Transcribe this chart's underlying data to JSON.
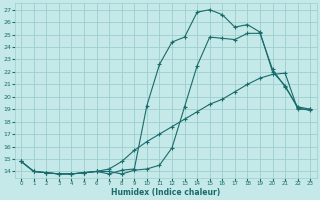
{
  "xlabel": "Humidex (Indice chaleur)",
  "bg_color": "#c5e8e8",
  "grid_color": "#9dcece",
  "line_color": "#1a6b6b",
  "xlim": [
    -0.5,
    23.5
  ],
  "ylim": [
    13.5,
    27.5
  ],
  "xticks": [
    0,
    1,
    2,
    3,
    4,
    5,
    6,
    7,
    8,
    9,
    10,
    11,
    12,
    13,
    14,
    15,
    16,
    17,
    18,
    19,
    20,
    21,
    22,
    23
  ],
  "yticks": [
    14,
    15,
    16,
    17,
    18,
    19,
    20,
    21,
    22,
    23,
    24,
    25,
    26,
    27
  ],
  "line1_x": [
    0,
    1,
    2,
    3,
    4,
    5,
    6,
    7,
    8,
    9,
    10,
    11,
    12,
    13,
    14,
    15,
    16,
    17,
    18,
    19,
    20,
    21,
    22,
    23
  ],
  "line1_y": [
    14.8,
    14.0,
    13.9,
    13.8,
    13.8,
    13.9,
    14.0,
    14.0,
    13.8,
    14.1,
    14.2,
    14.5,
    15.9,
    19.2,
    22.5,
    24.8,
    24.7,
    24.6,
    25.1,
    25.1,
    22.2,
    20.8,
    19.2,
    19.0
  ],
  "line2_x": [
    0,
    1,
    2,
    3,
    4,
    5,
    6,
    7,
    8,
    9,
    10,
    11,
    12,
    13,
    14,
    15,
    16,
    17,
    18,
    19,
    20,
    21,
    22,
    23
  ],
  "line2_y": [
    14.8,
    14.0,
    13.9,
    13.8,
    13.8,
    13.9,
    14.0,
    14.2,
    14.8,
    15.7,
    16.4,
    17.0,
    17.6,
    18.2,
    18.8,
    19.4,
    19.8,
    20.4,
    21.0,
    21.5,
    21.8,
    21.9,
    19.0,
    19.0
  ],
  "line3_x": [
    0,
    1,
    2,
    3,
    4,
    5,
    6,
    7,
    8,
    9,
    10,
    11,
    12,
    13,
    14,
    15,
    16,
    17,
    18,
    19,
    20,
    21,
    22,
    23
  ],
  "line3_y": [
    14.8,
    14.0,
    13.9,
    13.8,
    13.8,
    13.9,
    14.0,
    13.8,
    14.1,
    14.2,
    19.3,
    22.6,
    24.4,
    24.8,
    26.8,
    27.0,
    26.6,
    25.6,
    25.8,
    25.2,
    22.0,
    20.9,
    19.1,
    18.9
  ]
}
